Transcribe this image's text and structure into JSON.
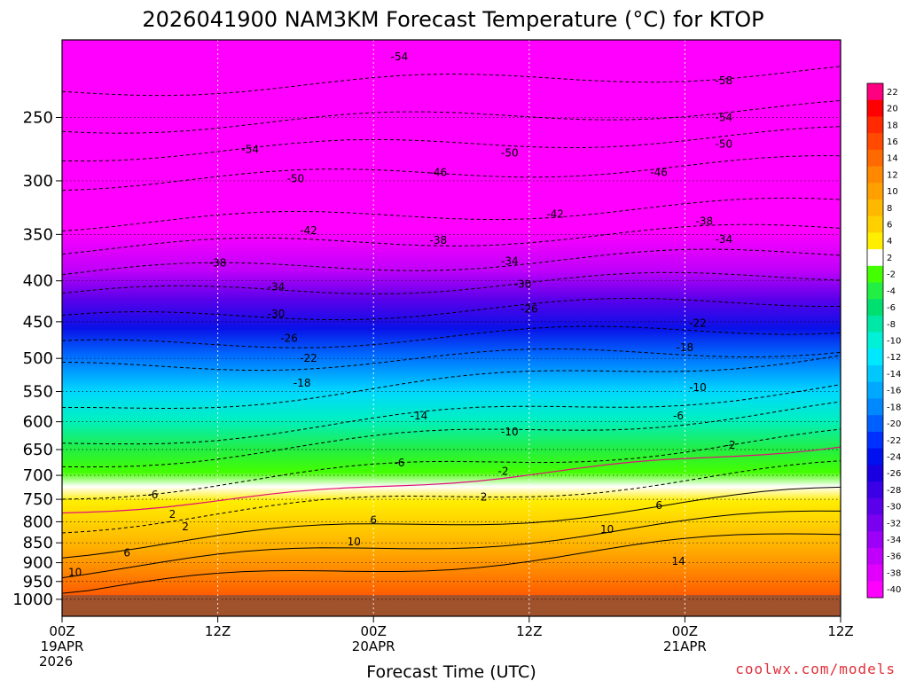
{
  "title": "2026041900 NAM3KM Forecast Temperature (°C) for KTOP",
  "credit": "coolwx.com/models",
  "chart_data": {
    "type": "heatmap",
    "title": "2026041900 NAM3KM Forecast Temperature (°C) for KTOP",
    "xlabel": "Forecast Time (UTC)",
    "ylabel": "",
    "x_range_hours": [
      0,
      60
    ],
    "y_range_hpa": [
      1050,
      200
    ],
    "y_scale": "log-pressure",
    "y_ticks": [
      "250",
      "300",
      "350",
      "400",
      "450",
      "500",
      "550",
      "600",
      "650",
      "700",
      "750",
      "800",
      "850",
      "900",
      "950",
      "1000"
    ],
    "x_ticks": [
      {
        "hour": 0,
        "lines": [
          "00Z",
          "19APR",
          "2026"
        ]
      },
      {
        "hour": 12,
        "lines": [
          "12Z"
        ]
      },
      {
        "hour": 24,
        "lines": [
          "00Z",
          "20APR"
        ]
      },
      {
        "hour": 36,
        "lines": [
          "12Z"
        ]
      },
      {
        "hour": 48,
        "lines": [
          "00Z",
          "21APR"
        ]
      },
      {
        "hour": 60,
        "lines": [
          "12Z"
        ]
      }
    ],
    "grid": true,
    "ground_level_hpa": 988,
    "colorbar_labels": [
      "22",
      "20",
      "18",
      "16",
      "14",
      "12",
      "10",
      "8",
      "6",
      "4",
      "2",
      "-2",
      "-4",
      "-6",
      "-8",
      "-10",
      "-12",
      "-14",
      "-16",
      "-18",
      "-20",
      "-22",
      "-24",
      "-26",
      "-28",
      "-30",
      "-32",
      "-34",
      "-36",
      "-38",
      "-40"
    ],
    "colorbar_colors": [
      "#ff0080",
      "#ff0000",
      "#ff2a00",
      "#ff4a00",
      "#ff6a00",
      "#ff8800",
      "#ffa000",
      "#ffb800",
      "#ffd000",
      "#ffee00",
      "#ffffff",
      "#44ff00",
      "#22ee44",
      "#00e070",
      "#00e8a8",
      "#00f0d8",
      "#00e8ff",
      "#00c8ff",
      "#00a8ff",
      "#0088ff",
      "#0060ff",
      "#0030ff",
      "#0010ee",
      "#1800e0",
      "#3a00e6",
      "#5a00ea",
      "#7a00f0",
      "#9c00f6",
      "#c000fa",
      "#e000fc",
      "#ff00ff"
    ],
    "isotherm_labels": [
      {
        "value": "-58",
        "hour": 51,
        "hpa": 225
      },
      {
        "value": "-54",
        "hour": 26,
        "hpa": 210
      },
      {
        "value": "-54",
        "hour": 51,
        "hpa": 250
      },
      {
        "value": "-54",
        "hour": 14.5,
        "hpa": 274
      },
      {
        "value": "-50",
        "hour": 34.5,
        "hpa": 277
      },
      {
        "value": "-50",
        "hour": 51,
        "hpa": 270
      },
      {
        "value": "-50",
        "hour": 18,
        "hpa": 298
      },
      {
        "value": "-46",
        "hour": 29,
        "hpa": 293
      },
      {
        "value": "-46",
        "hour": 46,
        "hpa": 293
      },
      {
        "value": "-42",
        "hour": 38,
        "hpa": 330
      },
      {
        "value": "-42",
        "hour": 19,
        "hpa": 346
      },
      {
        "value": "-38",
        "hour": 29,
        "hpa": 356
      },
      {
        "value": "-38",
        "hour": 49.5,
        "hpa": 337
      },
      {
        "value": "-38",
        "hour": 12,
        "hpa": 380
      },
      {
        "value": "-34",
        "hour": 34.5,
        "hpa": 378
      },
      {
        "value": "-34",
        "hour": 51,
        "hpa": 355
      },
      {
        "value": "-34",
        "hour": 16.5,
        "hpa": 407
      },
      {
        "value": "-30",
        "hour": 35.5,
        "hpa": 404
      },
      {
        "value": "-30",
        "hour": 16.5,
        "hpa": 440
      },
      {
        "value": "-26",
        "hour": 36,
        "hpa": 434
      },
      {
        "value": "-26",
        "hour": 17.5,
        "hpa": 472
      },
      {
        "value": "-22",
        "hour": 19,
        "hpa": 500
      },
      {
        "value": "-22",
        "hour": 49,
        "hpa": 452
      },
      {
        "value": "-18",
        "hour": 18.5,
        "hpa": 537
      },
      {
        "value": "-18",
        "hour": 48,
        "hpa": 485
      },
      {
        "value": "-14",
        "hour": 27.5,
        "hpa": 590
      },
      {
        "value": "-10",
        "hour": 49,
        "hpa": 544
      },
      {
        "value": "-10",
        "hour": 34.5,
        "hpa": 618
      },
      {
        "value": "-6",
        "hour": 47.5,
        "hpa": 590
      },
      {
        "value": "-6",
        "hour": 26,
        "hpa": 675
      },
      {
        "value": "-6",
        "hour": 7,
        "hpa": 740
      },
      {
        "value": "-2",
        "hour": 51.5,
        "hpa": 642
      },
      {
        "value": "-2",
        "hour": 34,
        "hpa": 692
      },
      {
        "value": "2",
        "hour": 8.5,
        "hpa": 783
      },
      {
        "value": "2",
        "hour": 32.5,
        "hpa": 745
      },
      {
        "value": "2",
        "hour": 9.5,
        "hpa": 811
      },
      {
        "value": "6",
        "hour": 46,
        "hpa": 763
      },
      {
        "value": "6",
        "hour": 24,
        "hpa": 796
      },
      {
        "value": "6",
        "hour": 5,
        "hpa": 875
      },
      {
        "value": "10",
        "hour": 22.5,
        "hpa": 847
      },
      {
        "value": "10",
        "hour": 42,
        "hpa": 818
      },
      {
        "value": "10",
        "hour": 1,
        "hpa": 925
      },
      {
        "value": "14",
        "hour": 47.5,
        "hpa": 896
      }
    ]
  }
}
